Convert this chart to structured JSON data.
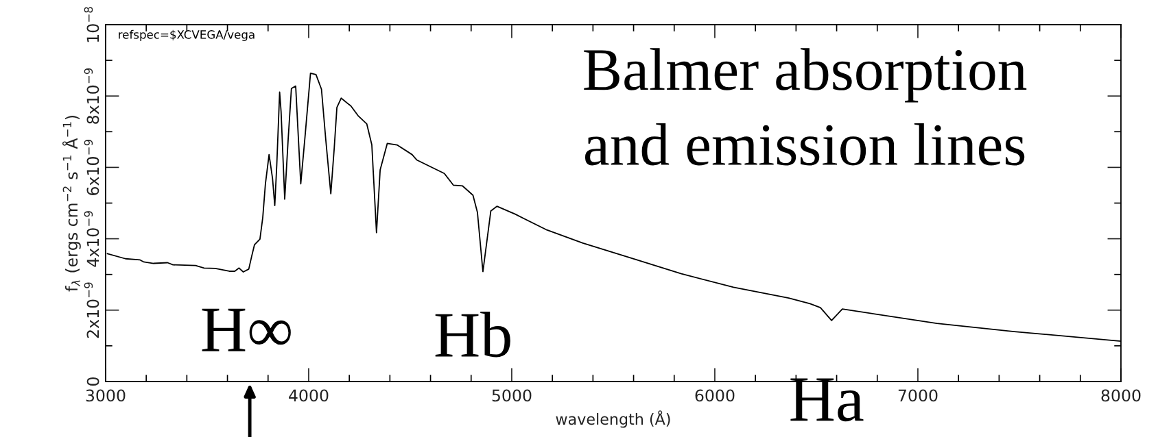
{
  "chart_data": {
    "type": "line",
    "title": "Balmer absorption\nand emission lines",
    "xlabel": "wavelength (Å)",
    "ylabel": "f$_{λ}$ (ergs cm$^{−2}$ s$^{−1}$ Å$^{−1}$)",
    "x": [
      3009,
      3098,
      3168,
      3188,
      3236,
      3305,
      3332,
      3443,
      3485,
      3540,
      3609,
      3636,
      3657,
      3678,
      3705,
      3719,
      3733,
      3760,
      3774,
      3787,
      3805,
      3822,
      3833,
      3843,
      3857,
      3864,
      3882,
      3899,
      3915,
      3936,
      3961,
      3982,
      4009,
      4036,
      4063,
      4084,
      4109,
      4126,
      4139,
      4160,
      4208,
      4243,
      4286,
      4311,
      4334,
      4352,
      4387,
      4435,
      4509,
      4532,
      4668,
      4713,
      4758,
      4809,
      4831,
      4858,
      4897,
      4927,
      5017,
      5168,
      5350,
      5592,
      5835,
      6092,
      6364,
      6469,
      6520,
      6575,
      6628,
      7093,
      7474,
      8000
    ],
    "series": [
      {
        "color": "#000000",
        "values": [
          3.58e-09,
          3.44e-09,
          3.41e-09,
          3.35e-09,
          3.31e-09,
          3.33e-09,
          3.27e-09,
          3.25e-09,
          3.18e-09,
          3.17e-09,
          3.09e-09,
          3.09e-09,
          3.18e-09,
          3.07e-09,
          3.15e-09,
          3.5e-09,
          3.83e-09,
          3.99e-09,
          4.6e-09,
          5.54e-09,
          6.36e-09,
          5.69e-09,
          4.93e-09,
          6.08e-09,
          8.11e-09,
          7.57e-09,
          5.11e-09,
          6.79e-09,
          8.21e-09,
          8.28e-09,
          5.54e-09,
          6.86e-09,
          8.64e-09,
          8.6e-09,
          8.19e-09,
          6.79e-09,
          5.26e-09,
          6.55e-09,
          7.68e-09,
          7.94e-09,
          7.72e-09,
          7.45e-09,
          7.22e-09,
          6.63e-09,
          4.17e-09,
          5.93e-09,
          6.67e-09,
          6.63e-09,
          6.36e-09,
          6.21e-09,
          5.83e-09,
          5.5e-09,
          5.48e-09,
          5.22e-09,
          4.74e-09,
          3.08e-09,
          4.78e-09,
          4.91e-09,
          4.69e-09,
          4.26e-09,
          3.88e-09,
          3.45e-09,
          3.02e-09,
          2.64e-09,
          2.34e-09,
          2.18e-09,
          2.07e-09,
          1.71e-09,
          2.03e-09,
          1.63e-09,
          1.4e-09,
          1.13e-09
        ]
      }
    ],
    "xlim": [
      3000,
      8000
    ],
    "xticks": [
      3000,
      {
        "value": 3200,
        "label": null
      },
      {
        "value": 3400,
        "label": null
      },
      {
        "value": 3600,
        "label": null
      },
      {
        "value": 3800,
        "label": null
      },
      4000,
      {
        "value": 4200,
        "label": null
      },
      {
        "value": 4400,
        "label": null
      },
      {
        "value": 4600,
        "label": null
      },
      {
        "value": 4800,
        "label": null
      },
      5000,
      {
        "value": 5200,
        "label": null
      },
      {
        "value": 5400,
        "label": null
      },
      {
        "value": 5600,
        "label": null
      },
      {
        "value": 5800,
        "label": null
      },
      6000,
      {
        "value": 6200,
        "label": null
      },
      {
        "value": 6400,
        "label": null
      },
      {
        "value": 6600,
        "label": null
      },
      {
        "value": 6800,
        "label": null
      },
      7000,
      {
        "value": 7200,
        "label": null
      },
      {
        "value": 7400,
        "label": null
      },
      {
        "value": 7600,
        "label": null
      },
      {
        "value": 7800,
        "label": null
      },
      8000
    ],
    "ylim": [
      0,
      1e-08
    ],
    "yticks": [
      {
        "value": 0,
        "label": "0"
      },
      {
        "value": 1e-09,
        "label": null
      },
      {
        "value": 2e-09,
        "label": "2x10$^{−9}$"
      },
      {
        "value": 3e-09,
        "label": null
      },
      {
        "value": 4e-09,
        "label": "4x10$^{−9}$"
      },
      {
        "value": 5e-09,
        "label": null
      },
      {
        "value": 6e-09,
        "label": "6x10$^{−9}$"
      },
      {
        "value": 7e-09,
        "label": null
      },
      {
        "value": 8e-09,
        "label": "8x10$^{−9}$"
      },
      {
        "value": 9e-09,
        "label": null
      },
      {
        "value": 1e-08,
        "label": "10$^{−8}$"
      }
    ],
    "annotations": [
      "refspec=$XCVEGA/vega",
      "H∞",
      "Hb",
      "Ha"
    ],
    "grid": false,
    "marker": "none",
    "line_style": "solid"
  }
}
